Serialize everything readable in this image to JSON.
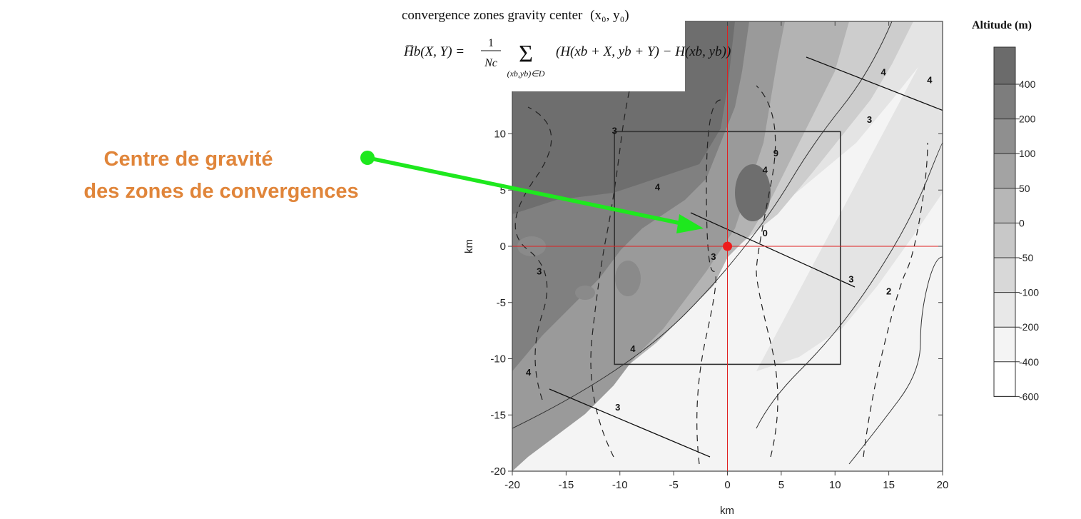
{
  "chart_data": {
    "type": "heatmap",
    "title": "convergence zones gravity center",
    "title_vars": "(x₀, y₀)",
    "formula": {
      "lhs": "H̅b(X, Y) = ",
      "fraction_num": "1",
      "fraction_den": "Nc",
      "sum": "Σ",
      "sum_sub": "(xb,yb)∈D",
      "rhs": "(H(xb + X, yb + Y) − H(xb, yb))"
    },
    "xlabel": "km",
    "ylabel": "km",
    "xlim": [
      -20,
      20
    ],
    "ylim": [
      -20,
      20
    ],
    "x_ticks": [
      -20,
      -15,
      -10,
      -5,
      0,
      5,
      10,
      15,
      20
    ],
    "y_ticks": [
      -20,
      -15,
      -10,
      -5,
      0,
      5,
      10
    ],
    "colorbar": {
      "title": "Altitude (m)",
      "levels": [
        400,
        200,
        100,
        50,
        0,
        -50,
        -100,
        -200,
        -400,
        -600
      ],
      "colors": [
        "#6b6b6b",
        "#7d7d7d",
        "#8f8f8f",
        "#a3a3a3",
        "#b7b7b7",
        "#c8c8c8",
        "#d8d8d8",
        "#e8e8e8",
        "#f4f4f4",
        "#ffffff"
      ]
    },
    "box": {
      "x": [
        -10.5,
        10.5
      ],
      "y": [
        -10.5,
        10.2
      ]
    },
    "crosshair": {
      "x": 0,
      "y": 0
    },
    "gravity_center": {
      "x": 0,
      "y": 0,
      "color": "#ee1c1c"
    },
    "contour_labels": [
      {
        "text": "3",
        "x": -10.5,
        "y": 10
      },
      {
        "text": "4",
        "x": -6.5,
        "y": 5
      },
      {
        "text": "9",
        "x": 4.5,
        "y": 8
      },
      {
        "text": "4",
        "x": 3.5,
        "y": 6.5
      },
      {
        "text": "0",
        "x": 3.5,
        "y": 0.9
      },
      {
        "text": "3",
        "x": -1.3,
        "y": -1.2
      },
      {
        "text": "3",
        "x": 13.2,
        "y": 11
      },
      {
        "text": "4",
        "x": 18.8,
        "y": 14.5
      },
      {
        "text": "4",
        "x": 14.5,
        "y": 15.2
      },
      {
        "text": "3",
        "x": -17.5,
        "y": -2.5
      },
      {
        "text": "3",
        "x": 11.5,
        "y": -3.2
      },
      {
        "text": "2",
        "x": 15,
        "y": -4.3
      },
      {
        "text": "4",
        "x": -18.5,
        "y": -11.5
      },
      {
        "text": "4",
        "x": -8.8,
        "y": -9.4
      },
      {
        "text": "3",
        "x": -10.2,
        "y": -14.6
      }
    ],
    "annotation": {
      "line1": "Centre de gravité",
      "line2": "des zones de convergences",
      "color": "#e0853a",
      "arrow_color": "#1ee81e"
    }
  }
}
